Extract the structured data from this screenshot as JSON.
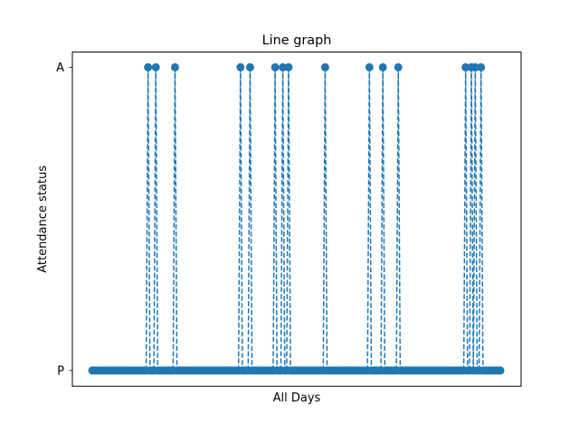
{
  "chart_data": {
    "type": "line",
    "title": "Line graph",
    "xlabel": "All Days",
    "ylabel": "Attendance status",
    "yticks": [
      "P",
      "A"
    ],
    "x_ticks_shown": false,
    "grid": false,
    "legend": "none",
    "line_style": "dashed",
    "marker": "circle",
    "series": [
      {
        "color": "#1f77b4",
        "absent_day_indices": [
          29,
          33,
          43,
          77,
          82,
          95,
          99,
          102,
          121,
          144,
          151,
          159,
          194,
          197,
          199,
          202
        ],
        "x": [
          0,
          1,
          2,
          3,
          4,
          5,
          6,
          7,
          8,
          9,
          10,
          11,
          12,
          13,
          14,
          15,
          16,
          17,
          18,
          19,
          20,
          21,
          22,
          23,
          24,
          25,
          26,
          27,
          28,
          29,
          30,
          31,
          32,
          33,
          34,
          35,
          36,
          37,
          38,
          39,
          40,
          41,
          42,
          43,
          44,
          45,
          46,
          47,
          48,
          49,
          50,
          51,
          52,
          53,
          54,
          55,
          56,
          57,
          58,
          59,
          60,
          61,
          62,
          63,
          64,
          65,
          66,
          67,
          68,
          69,
          70,
          71,
          72,
          73,
          74,
          75,
          76,
          77,
          78,
          79,
          80,
          81,
          82,
          83,
          84,
          85,
          86,
          87,
          88,
          89,
          90,
          91,
          92,
          93,
          94,
          95,
          96,
          97,
          98,
          99,
          100,
          101,
          102,
          103,
          104,
          105,
          106,
          107,
          108,
          109,
          110,
          111,
          112,
          113,
          114,
          115,
          116,
          117,
          118,
          119,
          120,
          121,
          122,
          123,
          124,
          125,
          126,
          127,
          128,
          129,
          130,
          131,
          132,
          133,
          134,
          135,
          136,
          137,
          138,
          139,
          140,
          141,
          142,
          143,
          144,
          145,
          146,
          147,
          148,
          149,
          150,
          151,
          152,
          153,
          154,
          155,
          156,
          157,
          158,
          159,
          160,
          161,
          162,
          163,
          164,
          165,
          166,
          167,
          168,
          169,
          170,
          171,
          172,
          173,
          174,
          175,
          176,
          177,
          178,
          179,
          180,
          181,
          182,
          183,
          184,
          185,
          186,
          187,
          188,
          189,
          190,
          191,
          192,
          193,
          194,
          195,
          196,
          197,
          198,
          199,
          200,
          201,
          202,
          203,
          204,
          205,
          206,
          207,
          208,
          209,
          210,
          211,
          212
        ],
        "values": [
          "P",
          "P",
          "P",
          "P",
          "P",
          "P",
          "P",
          "P",
          "P",
          "P",
          "P",
          "P",
          "P",
          "P",
          "P",
          "P",
          "P",
          "P",
          "P",
          "P",
          "P",
          "P",
          "P",
          "P",
          "P",
          "P",
          "P",
          "P",
          "P",
          "A",
          "P",
          "P",
          "P",
          "A",
          "P",
          "P",
          "P",
          "P",
          "P",
          "P",
          "P",
          "P",
          "P",
          "A",
          "P",
          "P",
          "P",
          "P",
          "P",
          "P",
          "P",
          "P",
          "P",
          "P",
          "P",
          "P",
          "P",
          "P",
          "P",
          "P",
          "P",
          "P",
          "P",
          "P",
          "P",
          "P",
          "P",
          "P",
          "P",
          "P",
          "P",
          "P",
          "P",
          "P",
          "P",
          "P",
          "P",
          "A",
          "P",
          "P",
          "P",
          "P",
          "A",
          "P",
          "P",
          "P",
          "P",
          "P",
          "P",
          "P",
          "P",
          "P",
          "P",
          "P",
          "P",
          "A",
          "P",
          "P",
          "P",
          "A",
          "P",
          "P",
          "A",
          "P",
          "P",
          "P",
          "P",
          "P",
          "P",
          "P",
          "P",
          "P",
          "P",
          "P",
          "P",
          "P",
          "P",
          "P",
          "P",
          "P",
          "P",
          "A",
          "P",
          "P",
          "P",
          "P",
          "P",
          "P",
          "P",
          "P",
          "P",
          "P",
          "P",
          "P",
          "P",
          "P",
          "P",
          "P",
          "P",
          "P",
          "P",
          "P",
          "P",
          "P",
          "A",
          "P",
          "P",
          "P",
          "P",
          "P",
          "P",
          "A",
          "P",
          "P",
          "P",
          "P",
          "P",
          "P",
          "P",
          "A",
          "P",
          "P",
          "P",
          "P",
          "P",
          "P",
          "P",
          "P",
          "P",
          "P",
          "P",
          "P",
          "P",
          "P",
          "P",
          "P",
          "P",
          "P",
          "P",
          "P",
          "P",
          "P",
          "P",
          "P",
          "P",
          "P",
          "P",
          "P",
          "P",
          "P",
          "P",
          "P",
          "P",
          "P",
          "A",
          "P",
          "P",
          "A",
          "P",
          "A",
          "P",
          "P",
          "A",
          "P",
          "P",
          "P",
          "P",
          "P",
          "P",
          "P",
          "P",
          "P",
          "P"
        ]
      }
    ]
  }
}
